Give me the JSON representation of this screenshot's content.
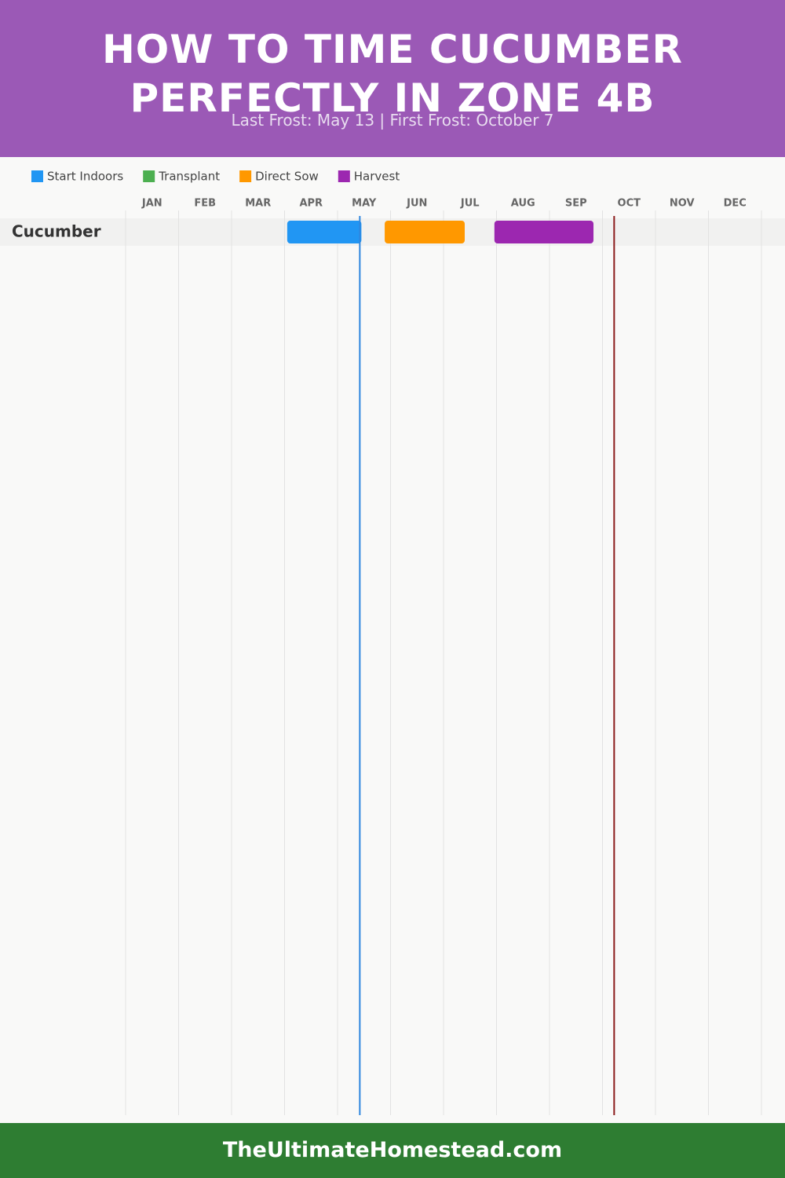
{
  "chart_data": {
    "type": "gantt",
    "title": "HOW TO TIME CUCUMBER PERFECTLY IN ZONE 4B",
    "subtitle": "Last Frost: May 13 | First Frost: October 7",
    "categories": [
      "JAN",
      "FEB",
      "MAR",
      "APR",
      "MAY",
      "JUN",
      "JUL",
      "AUG",
      "SEP",
      "OCT",
      "NOV",
      "DEC"
    ],
    "xlim": [
      0,
      12
    ],
    "row_label": "Cucumber",
    "series": [
      {
        "name": "Start Indoors",
        "color": "#2196f3",
        "bars": [
          [
            3.05,
            4.45
          ]
        ]
      },
      {
        "name": "Transplant",
        "color": "#4caf50",
        "bars": []
      },
      {
        "name": "Direct Sow",
        "color": "#ff9800",
        "bars": [
          [
            4.89,
            6.4
          ]
        ]
      },
      {
        "name": "Harvest",
        "color": "#9c27b0",
        "bars": [
          [
            6.96,
            8.83
          ]
        ]
      }
    ],
    "frost_lines": [
      4.42,
      9.22
    ],
    "frost_line_colors": [
      "#2e86de",
      "#8b1a1a"
    ],
    "footer": "TheUltimateHomestead.com"
  }
}
